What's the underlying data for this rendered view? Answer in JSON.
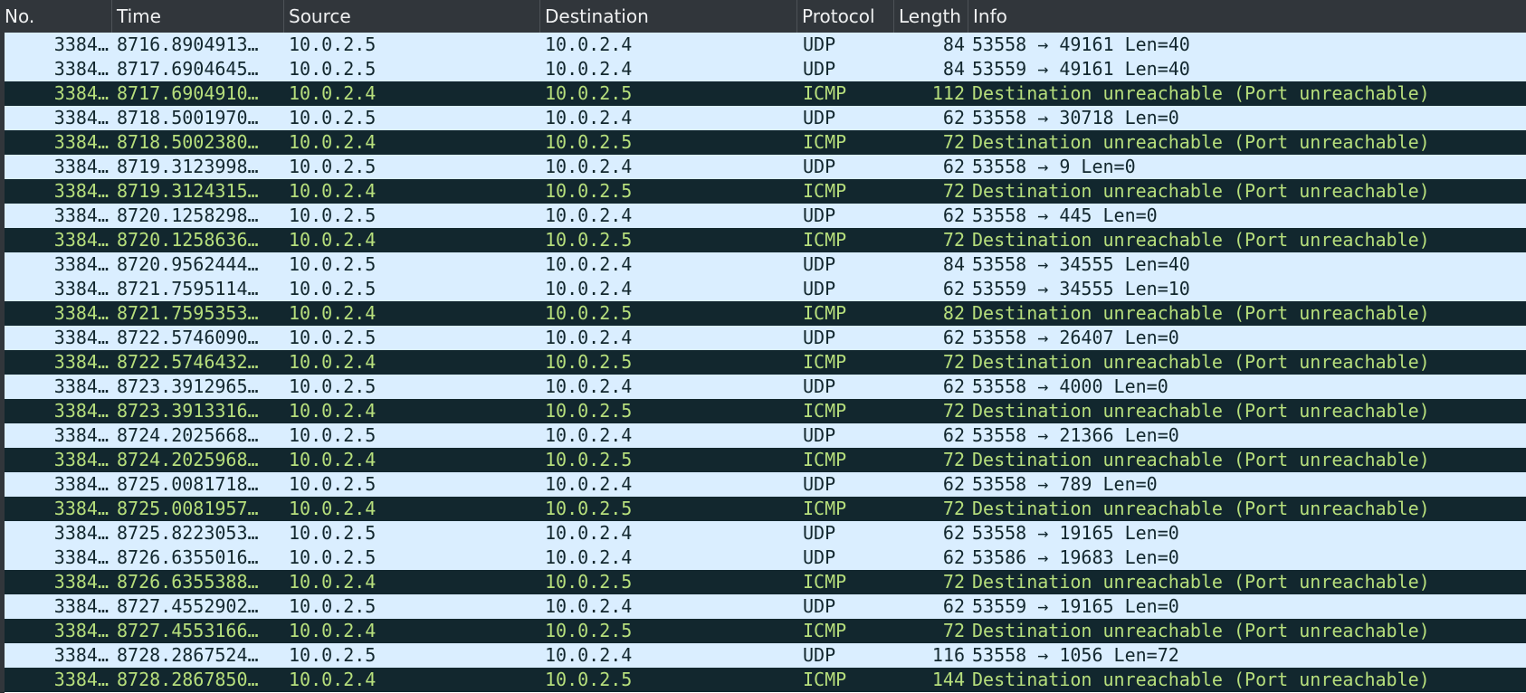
{
  "columns": {
    "no": "No.",
    "time": "Time",
    "source": "Source",
    "destination": "Destination",
    "protocol": "Protocol",
    "length": "Length",
    "info": "Info"
  },
  "colors": {
    "udp_background": "#daeeff",
    "udp_text": "#12272e",
    "icmp_background": "#12272e",
    "icmp_text": "#b7df7c",
    "header_background": "#31363b",
    "header_text": "#eff0f1"
  },
  "packets": [
    {
      "no": "3384…",
      "time": "8716.8904913…",
      "source": "10.0.2.5",
      "destination": "10.0.2.4",
      "protocol": "UDP",
      "length": "84",
      "info": "53558 → 49161 Len=40"
    },
    {
      "no": "3384…",
      "time": "8717.6904645…",
      "source": "10.0.2.5",
      "destination": "10.0.2.4",
      "protocol": "UDP",
      "length": "84",
      "info": "53559 → 49161 Len=40"
    },
    {
      "no": "3384…",
      "time": "8717.6904910…",
      "source": "10.0.2.4",
      "destination": "10.0.2.5",
      "protocol": "ICMP",
      "length": "112",
      "info": "Destination unreachable (Port unreachable)"
    },
    {
      "no": "3384…",
      "time": "8718.5001970…",
      "source": "10.0.2.5",
      "destination": "10.0.2.4",
      "protocol": "UDP",
      "length": "62",
      "info": "53558 → 30718 Len=0"
    },
    {
      "no": "3384…",
      "time": "8718.5002380…",
      "source": "10.0.2.4",
      "destination": "10.0.2.5",
      "protocol": "ICMP",
      "length": "72",
      "info": "Destination unreachable (Port unreachable)"
    },
    {
      "no": "3384…",
      "time": "8719.3123998…",
      "source": "10.0.2.5",
      "destination": "10.0.2.4",
      "protocol": "UDP",
      "length": "62",
      "info": "53558 → 9 Len=0"
    },
    {
      "no": "3384…",
      "time": "8719.3124315…",
      "source": "10.0.2.4",
      "destination": "10.0.2.5",
      "protocol": "ICMP",
      "length": "72",
      "info": "Destination unreachable (Port unreachable)"
    },
    {
      "no": "3384…",
      "time": "8720.1258298…",
      "source": "10.0.2.5",
      "destination": "10.0.2.4",
      "protocol": "UDP",
      "length": "62",
      "info": "53558 → 445 Len=0"
    },
    {
      "no": "3384…",
      "time": "8720.1258636…",
      "source": "10.0.2.4",
      "destination": "10.0.2.5",
      "protocol": "ICMP",
      "length": "72",
      "info": "Destination unreachable (Port unreachable)"
    },
    {
      "no": "3384…",
      "time": "8720.9562444…",
      "source": "10.0.2.5",
      "destination": "10.0.2.4",
      "protocol": "UDP",
      "length": "84",
      "info": "53558 → 34555 Len=40"
    },
    {
      "no": "3384…",
      "time": "8721.7595114…",
      "source": "10.0.2.5",
      "destination": "10.0.2.4",
      "protocol": "UDP",
      "length": "62",
      "info": "53559 → 34555 Len=10"
    },
    {
      "no": "3384…",
      "time": "8721.7595353…",
      "source": "10.0.2.4",
      "destination": "10.0.2.5",
      "protocol": "ICMP",
      "length": "82",
      "info": "Destination unreachable (Port unreachable)"
    },
    {
      "no": "3384…",
      "time": "8722.5746090…",
      "source": "10.0.2.5",
      "destination": "10.0.2.4",
      "protocol": "UDP",
      "length": "62",
      "info": "53558 → 26407 Len=0"
    },
    {
      "no": "3384…",
      "time": "8722.5746432…",
      "source": "10.0.2.4",
      "destination": "10.0.2.5",
      "protocol": "ICMP",
      "length": "72",
      "info": "Destination unreachable (Port unreachable)"
    },
    {
      "no": "3384…",
      "time": "8723.3912965…",
      "source": "10.0.2.5",
      "destination": "10.0.2.4",
      "protocol": "UDP",
      "length": "62",
      "info": "53558 → 4000 Len=0"
    },
    {
      "no": "3384…",
      "time": "8723.3913316…",
      "source": "10.0.2.4",
      "destination": "10.0.2.5",
      "protocol": "ICMP",
      "length": "72",
      "info": "Destination unreachable (Port unreachable)"
    },
    {
      "no": "3384…",
      "time": "8724.2025668…",
      "source": "10.0.2.5",
      "destination": "10.0.2.4",
      "protocol": "UDP",
      "length": "62",
      "info": "53558 → 21366 Len=0"
    },
    {
      "no": "3384…",
      "time": "8724.2025968…",
      "source": "10.0.2.4",
      "destination": "10.0.2.5",
      "protocol": "ICMP",
      "length": "72",
      "info": "Destination unreachable (Port unreachable)"
    },
    {
      "no": "3384…",
      "time": "8725.0081718…",
      "source": "10.0.2.5",
      "destination": "10.0.2.4",
      "protocol": "UDP",
      "length": "62",
      "info": "53558 → 789 Len=0"
    },
    {
      "no": "3384…",
      "time": "8725.0081957…",
      "source": "10.0.2.4",
      "destination": "10.0.2.5",
      "protocol": "ICMP",
      "length": "72",
      "info": "Destination unreachable (Port unreachable)"
    },
    {
      "no": "3384…",
      "time": "8725.8223053…",
      "source": "10.0.2.5",
      "destination": "10.0.2.4",
      "protocol": "UDP",
      "length": "62",
      "info": "53558 → 19165 Len=0"
    },
    {
      "no": "3384…",
      "time": "8726.6355016…",
      "source": "10.0.2.5",
      "destination": "10.0.2.4",
      "protocol": "UDP",
      "length": "62",
      "info": "53586 → 19683 Len=0"
    },
    {
      "no": "3384…",
      "time": "8726.6355388…",
      "source": "10.0.2.4",
      "destination": "10.0.2.5",
      "protocol": "ICMP",
      "length": "72",
      "info": "Destination unreachable (Port unreachable)"
    },
    {
      "no": "3384…",
      "time": "8727.4552902…",
      "source": "10.0.2.5",
      "destination": "10.0.2.4",
      "protocol": "UDP",
      "length": "62",
      "info": "53559 → 19165 Len=0"
    },
    {
      "no": "3384…",
      "time": "8727.4553166…",
      "source": "10.0.2.4",
      "destination": "10.0.2.5",
      "protocol": "ICMP",
      "length": "72",
      "info": "Destination unreachable (Port unreachable)"
    },
    {
      "no": "3384…",
      "time": "8728.2867524…",
      "source": "10.0.2.5",
      "destination": "10.0.2.4",
      "protocol": "UDP",
      "length": "116",
      "info": "53558 → 1056 Len=72"
    },
    {
      "no": "3384…",
      "time": "8728.2867850…",
      "source": "10.0.2.4",
      "destination": "10.0.2.5",
      "protocol": "ICMP",
      "length": "144",
      "info": "Destination unreachable (Port unreachable)"
    }
  ]
}
